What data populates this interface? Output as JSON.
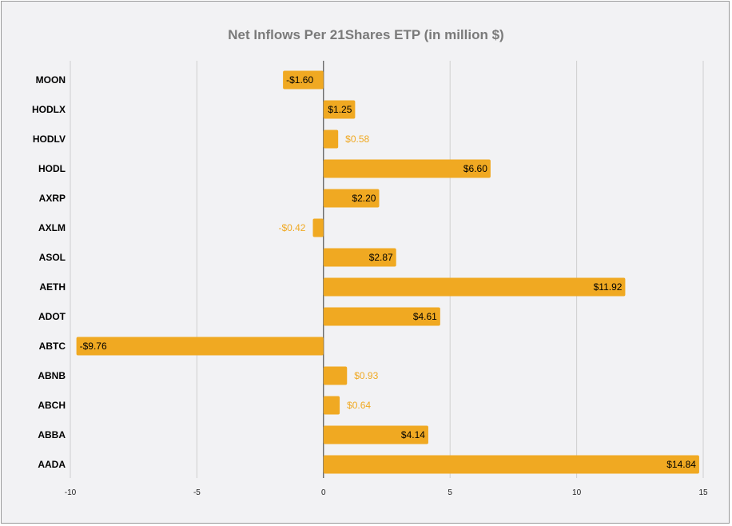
{
  "chart_data": {
    "type": "bar",
    "orientation": "horizontal",
    "title": "Net Inflows Per 21Shares ETP (in million $)",
    "categories": [
      "MOON",
      "HODLX",
      "HODLV",
      "HODL",
      "AXRP",
      "AXLM",
      "ASOL",
      "AETH",
      "ADOT",
      "ABTC",
      "ABNB",
      "ABCH",
      "ABBA",
      "AADA"
    ],
    "values": [
      -1.6,
      1.25,
      0.58,
      6.6,
      2.2,
      -0.42,
      2.87,
      11.92,
      4.61,
      -9.76,
      0.93,
      0.64,
      4.14,
      14.84
    ],
    "data_labels": [
      "-$1.60",
      "$1.25",
      "$0.58",
      "$6.60",
      "$2.20",
      "-$0.42",
      "$2.87",
      "$11.92",
      "$4.61",
      "-$9.76",
      "$0.93",
      "$0.64",
      "$4.14",
      "$14.84"
    ],
    "xlim": [
      -10,
      15
    ],
    "xticks": [
      -10,
      -5,
      0,
      5,
      10,
      15
    ],
    "xtick_labels": [
      "-10",
      "-5",
      "0",
      "5",
      "10",
      "15"
    ],
    "grid": true,
    "legend": "none",
    "colors": {
      "bar": "#f0a922",
      "outside_label": "#f0a922",
      "inside_label": "#000000",
      "grid": "#cfcfcf",
      "zero_line": "#333333"
    }
  }
}
